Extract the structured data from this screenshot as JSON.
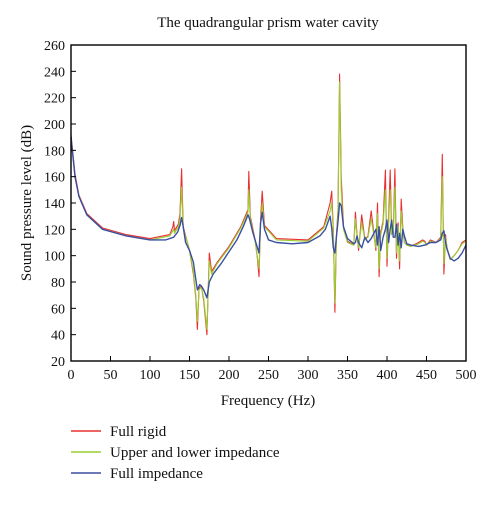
{
  "chart_data": {
    "type": "line",
    "title": "The quadrangular prism water cavity",
    "xlabel": "Frequency (Hz)",
    "ylabel": "Sound pressure level (dB)",
    "xlim": [
      0,
      500
    ],
    "ylim": [
      20,
      260
    ],
    "xticks": [
      0,
      50,
      100,
      150,
      200,
      250,
      300,
      350,
      400,
      450,
      500
    ],
    "yticks": [
      20,
      40,
      60,
      80,
      100,
      120,
      140,
      160,
      180,
      200,
      220,
      240,
      260
    ],
    "grid": false,
    "legend_position": "bottom-left, below plot",
    "series": [
      {
        "name": "Full rigid",
        "color": "#e8312f",
        "x": [
          0,
          2,
          5,
          10,
          20,
          40,
          70,
          100,
          125,
          129,
          130,
          131,
          136,
          138,
          140,
          142,
          150,
          155,
          158,
          160,
          162,
          165,
          168,
          172,
          175,
          178,
          185,
          200,
          215,
          224,
          225,
          227,
          233,
          236,
          238,
          240,
          242,
          245,
          260,
          300,
          320,
          328,
          330,
          332,
          334,
          336,
          338,
          340,
          342,
          345,
          350,
          358,
          360,
          362,
          364,
          368,
          372,
          376,
          380,
          386,
          388,
          390,
          392,
          395,
          398,
          400,
          402,
          404,
          406,
          408,
          410,
          412,
          414,
          416,
          418,
          420,
          422,
          425,
          430,
          440,
          445,
          448,
          450,
          455,
          462,
          468,
          470,
          472,
          474,
          476,
          480,
          485,
          490,
          495,
          500
        ],
        "y": [
          192,
          180,
          162,
          146,
          132,
          121,
          116,
          113,
          116,
          122,
          126,
          119,
          124,
          132,
          166,
          122,
          104,
          86,
          68,
          44,
          75,
          77,
          66,
          40,
          102,
          88,
          95,
          107,
          122,
          135,
          164,
          130,
          112,
          98,
          84,
          128,
          149,
          123,
          113,
          112,
          122,
          140,
          149,
          120,
          57,
          115,
          135,
          238,
          160,
          122,
          111,
          108,
          133,
          116,
          104,
          131,
          112,
          115,
          134,
          104,
          140,
          84,
          118,
          126,
          165,
          92,
          128,
          165,
          116,
          118,
          166,
          98,
          125,
          90,
          143,
          121,
          110,
          108,
          107,
          110,
          112,
          111,
          108,
          112,
          110,
          114,
          177,
          86,
          116,
          106,
          97,
          100,
          104,
          110,
          112
        ]
      },
      {
        "name": "Upper and lower impedance",
        "color": "#9acd32",
        "x": [
          0,
          2,
          5,
          10,
          20,
          40,
          70,
          100,
          125,
          130,
          131,
          136,
          138,
          140,
          142,
          150,
          155,
          158,
          160,
          162,
          165,
          168,
          172,
          175,
          178,
          185,
          200,
          215,
          224,
          225,
          227,
          233,
          236,
          238,
          240,
          242,
          245,
          260,
          300,
          320,
          328,
          330,
          332,
          334,
          336,
          338,
          340,
          342,
          345,
          350,
          358,
          360,
          362,
          364,
          368,
          372,
          376,
          380,
          386,
          388,
          390,
          392,
          395,
          398,
          400,
          402,
          404,
          406,
          408,
          410,
          412,
          414,
          416,
          418,
          420,
          422,
          425,
          430,
          440,
          445,
          448,
          450,
          455,
          462,
          468,
          470,
          472,
          474,
          476,
          480,
          485,
          490,
          495,
          500
        ],
        "y": [
          190,
          178,
          160,
          145,
          131,
          120,
          115,
          112,
          115,
          120,
          117,
          122,
          128,
          152,
          121,
          104,
          88,
          70,
          50,
          74,
          76,
          68,
          44,
          96,
          86,
          94,
          106,
          121,
          133,
          150,
          128,
          111,
          99,
          90,
          124,
          140,
          122,
          112,
          111,
          121,
          134,
          140,
          118,
          64,
          114,
          132,
          232,
          150,
          120,
          110,
          108,
          128,
          115,
          106,
          125,
          112,
          114,
          128,
          106,
          132,
          90,
          116,
          124,
          150,
          98,
          124,
          150,
          116,
          117,
          152,
          102,
          122,
          96,
          134,
          119,
          110,
          108,
          107,
          109,
          111,
          110,
          108,
          111,
          110,
          113,
          160,
          94,
          114,
          106,
          97,
          100,
          104,
          109,
          111
        ]
      },
      {
        "name": "Full impedance",
        "color": "#3b4fa0",
        "x": [
          0,
          2,
          5,
          10,
          20,
          40,
          70,
          100,
          120,
          130,
          135,
          138,
          140,
          142,
          145,
          150,
          155,
          158,
          160,
          163,
          165,
          168,
          172,
          175,
          180,
          190,
          200,
          210,
          218,
          222,
          224,
          226,
          230,
          235,
          238,
          240,
          242,
          245,
          250,
          260,
          280,
          300,
          315,
          322,
          328,
          330,
          332,
          334,
          336,
          338,
          340,
          342,
          345,
          350,
          358,
          360,
          362,
          364,
          368,
          372,
          376,
          380,
          386,
          388,
          390,
          392,
          395,
          398,
          400,
          402,
          404,
          406,
          408,
          410,
          412,
          414,
          416,
          418,
          420,
          422,
          425,
          430,
          440,
          448,
          455,
          462,
          468,
          470,
          472,
          474,
          476,
          480,
          485,
          490,
          495,
          500
        ],
        "y": [
          190,
          178,
          160,
          145,
          131,
          120,
          115,
          112,
          112,
          114,
          118,
          123,
          129,
          122,
          110,
          104,
          95,
          82,
          74,
          78,
          77,
          74,
          68,
          80,
          86,
          94,
          103,
          112,
          122,
          128,
          131,
          128,
          118,
          108,
          102,
          125,
          133,
          120,
          112,
          110,
          109,
          110,
          115,
          120,
          130,
          121,
          106,
          102,
          114,
          126,
          140,
          138,
          122,
          113,
          109,
          110,
          115,
          110,
          106,
          114,
          110,
          113,
          120,
          108,
          122,
          104,
          114,
          120,
          127,
          110,
          120,
          127,
          114,
          114,
          124,
          108,
          117,
          106,
          120,
          115,
          109,
          108,
          107,
          108,
          110,
          110,
          112,
          117,
          119,
          110,
          105,
          98,
          96,
          98,
          102,
          108
        ]
      }
    ]
  }
}
